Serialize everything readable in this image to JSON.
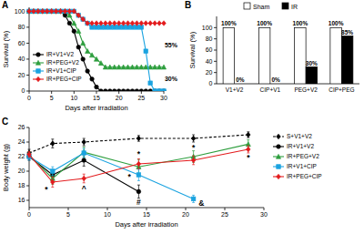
{
  "chart_data": [
    {
      "type": "line",
      "title": "A",
      "x_label": "Days after irradiation",
      "y_label": "Survival (%)",
      "x": [
        0,
        1,
        2,
        3,
        4,
        5,
        6,
        7,
        8,
        9,
        10,
        11,
        12,
        13,
        14,
        15,
        16,
        17,
        18,
        19,
        20,
        21,
        22,
        23,
        24,
        25,
        26,
        27,
        28,
        29,
        30
      ],
      "xlim": [
        0,
        30
      ],
      "xticks": [
        0,
        5,
        10,
        15,
        20,
        25,
        30
      ],
      "ylim": [
        0,
        105
      ],
      "yticks": [
        0,
        20,
        40,
        60,
        80,
        100
      ],
      "legend": "left",
      "series": [
        {
          "name": "IR+V1+V2",
          "color": "#000000",
          "marker": "circle",
          "line_style": "solid",
          "values": [
            100,
            100,
            100,
            100,
            100,
            100,
            100,
            100,
            95,
            85,
            75,
            55,
            40,
            25,
            15,
            5,
            0,
            0,
            0,
            0,
            0,
            0,
            0,
            0,
            0,
            0,
            0,
            0,
            0,
            0,
            0
          ]
        },
        {
          "name": "IR+PEG+V2",
          "color": "#2e9e3e",
          "marker": "triangle",
          "line_style": "solid",
          "values": [
            100,
            100,
            100,
            100,
            100,
            100,
            100,
            100,
            100,
            95,
            85,
            75,
            60,
            50,
            45,
            40,
            35,
            30,
            30,
            30,
            30,
            30,
            30,
            30,
            30,
            30,
            30,
            30,
            30,
            30,
            30
          ]
        },
        {
          "name": "IR+V1+CIP",
          "color": "#1aa3e0",
          "marker": "square",
          "line_style": "solid",
          "values": [
            100,
            100,
            100,
            100,
            100,
            100,
            100,
            100,
            100,
            100,
            100,
            95,
            90,
            85,
            80,
            80,
            80,
            80,
            80,
            80,
            80,
            80,
            80,
            80,
            80,
            80,
            50,
            10,
            0,
            0,
            0
          ]
        },
        {
          "name": "IR+PEG+CIP",
          "color": "#e31a1c",
          "marker": "diamond",
          "line_style": "solid",
          "values": [
            100,
            100,
            100,
            100,
            100,
            100,
            100,
            100,
            100,
            100,
            100,
            95,
            90,
            85,
            85,
            85,
            85,
            85,
            85,
            85,
            85,
            85,
            85,
            85,
            85,
            85,
            85,
            85,
            85,
            85,
            85
          ]
        }
      ],
      "annotations": [
        {
          "text": "55%",
          "x": 31.6,
          "y": 57.5
        },
        {
          "text": "30%",
          "x": 31.6,
          "y": 15
        }
      ]
    },
    {
      "type": "bar",
      "title": "B",
      "y_label": "Survival (%)",
      "categories": [
        "V1+V2",
        "CIP+V1",
        "PEG+V2",
        "CIP+PEG"
      ],
      "ylim": [
        0,
        120
      ],
      "yticks": [
        0,
        20,
        40,
        60,
        80,
        100
      ],
      "legend": "top",
      "data_labels": true,
      "series": [
        {
          "name": "Sham",
          "color": "#ffffff",
          "values": [
            100,
            100,
            100,
            100
          ],
          "value_labels": [
            "100%",
            "100%",
            "100%",
            "100%"
          ]
        },
        {
          "name": "IR",
          "color": "#000000",
          "values": [
            0,
            0,
            30,
            85
          ],
          "value_labels": [
            "0%",
            "0%",
            "30%",
            "85%"
          ]
        }
      ]
    },
    {
      "type": "line",
      "title": "C",
      "x_label": "Days after irradiation",
      "y_label": "Body weight (g)",
      "x": [
        0,
        3,
        7,
        14,
        21,
        28
      ],
      "xlim": [
        0,
        30
      ],
      "xticks": [
        0,
        5,
        10,
        15,
        20,
        25,
        30
      ],
      "ylim": [
        15,
        26
      ],
      "yticks": [
        16,
        18,
        20,
        22,
        24,
        26
      ],
      "legend": "right",
      "series": [
        {
          "name": "S+V1+V2",
          "color": "#000000",
          "marker": "diamond",
          "line_style": "dashed",
          "values": [
            22.5,
            23.8,
            24,
            24.5,
            24.5,
            25
          ],
          "errors": [
            0.5,
            0.6,
            0.5,
            0.4,
            0.5,
            0.4
          ]
        },
        {
          "name": "IR+V1+V2",
          "color": "#000000",
          "marker": "circle",
          "line_style": "solid",
          "values": [
            22,
            19.5,
            21.5,
            17.2,
            null,
            null
          ],
          "errors": [
            0.5,
            0.7,
            0.8,
            0.9,
            null,
            null
          ]
        },
        {
          "name": "IR+PEG+V2",
          "color": "#2e9e3e",
          "marker": "triangle",
          "line_style": "solid",
          "values": [
            22.2,
            19,
            22.6,
            20.6,
            22,
            23.7
          ],
          "errors": [
            0.4,
            0.8,
            0.7,
            1,
            0.8,
            0.6
          ]
        },
        {
          "name": "IR+V1+CIP",
          "color": "#1aa3e0",
          "marker": "square",
          "line_style": "solid",
          "values": [
            22,
            20,
            22.5,
            19.5,
            16.2,
            null
          ],
          "errors": [
            0.5,
            0.6,
            0.6,
            0.8,
            0.5,
            null
          ]
        },
        {
          "name": "IR+PEG+CIP",
          "color": "#e31a1c",
          "marker": "diamond",
          "line_style": "solid",
          "values": [
            22.3,
            18.5,
            19,
            21,
            21.5,
            23
          ],
          "errors": [
            0.4,
            0.7,
            0.6,
            0.7,
            0.6,
            0.5
          ]
        }
      ],
      "annotations": [
        {
          "text": "*",
          "x": 2.2,
          "y": 17.4
        },
        {
          "text": "^",
          "x": 7,
          "y": 17.6
        },
        {
          "text": "*",
          "x": 14,
          "y": 22.3
        },
        {
          "text": "*",
          "x": 12.8,
          "y": 19.2
        },
        {
          "text": "#",
          "x": 14,
          "y": 15.7
        },
        {
          "text": "*",
          "x": 21,
          "y": 23.2
        },
        {
          "text": "&",
          "x": 22,
          "y": 15.6
        },
        {
          "text": "*",
          "x": 28,
          "y": 21.8
        }
      ]
    }
  ]
}
